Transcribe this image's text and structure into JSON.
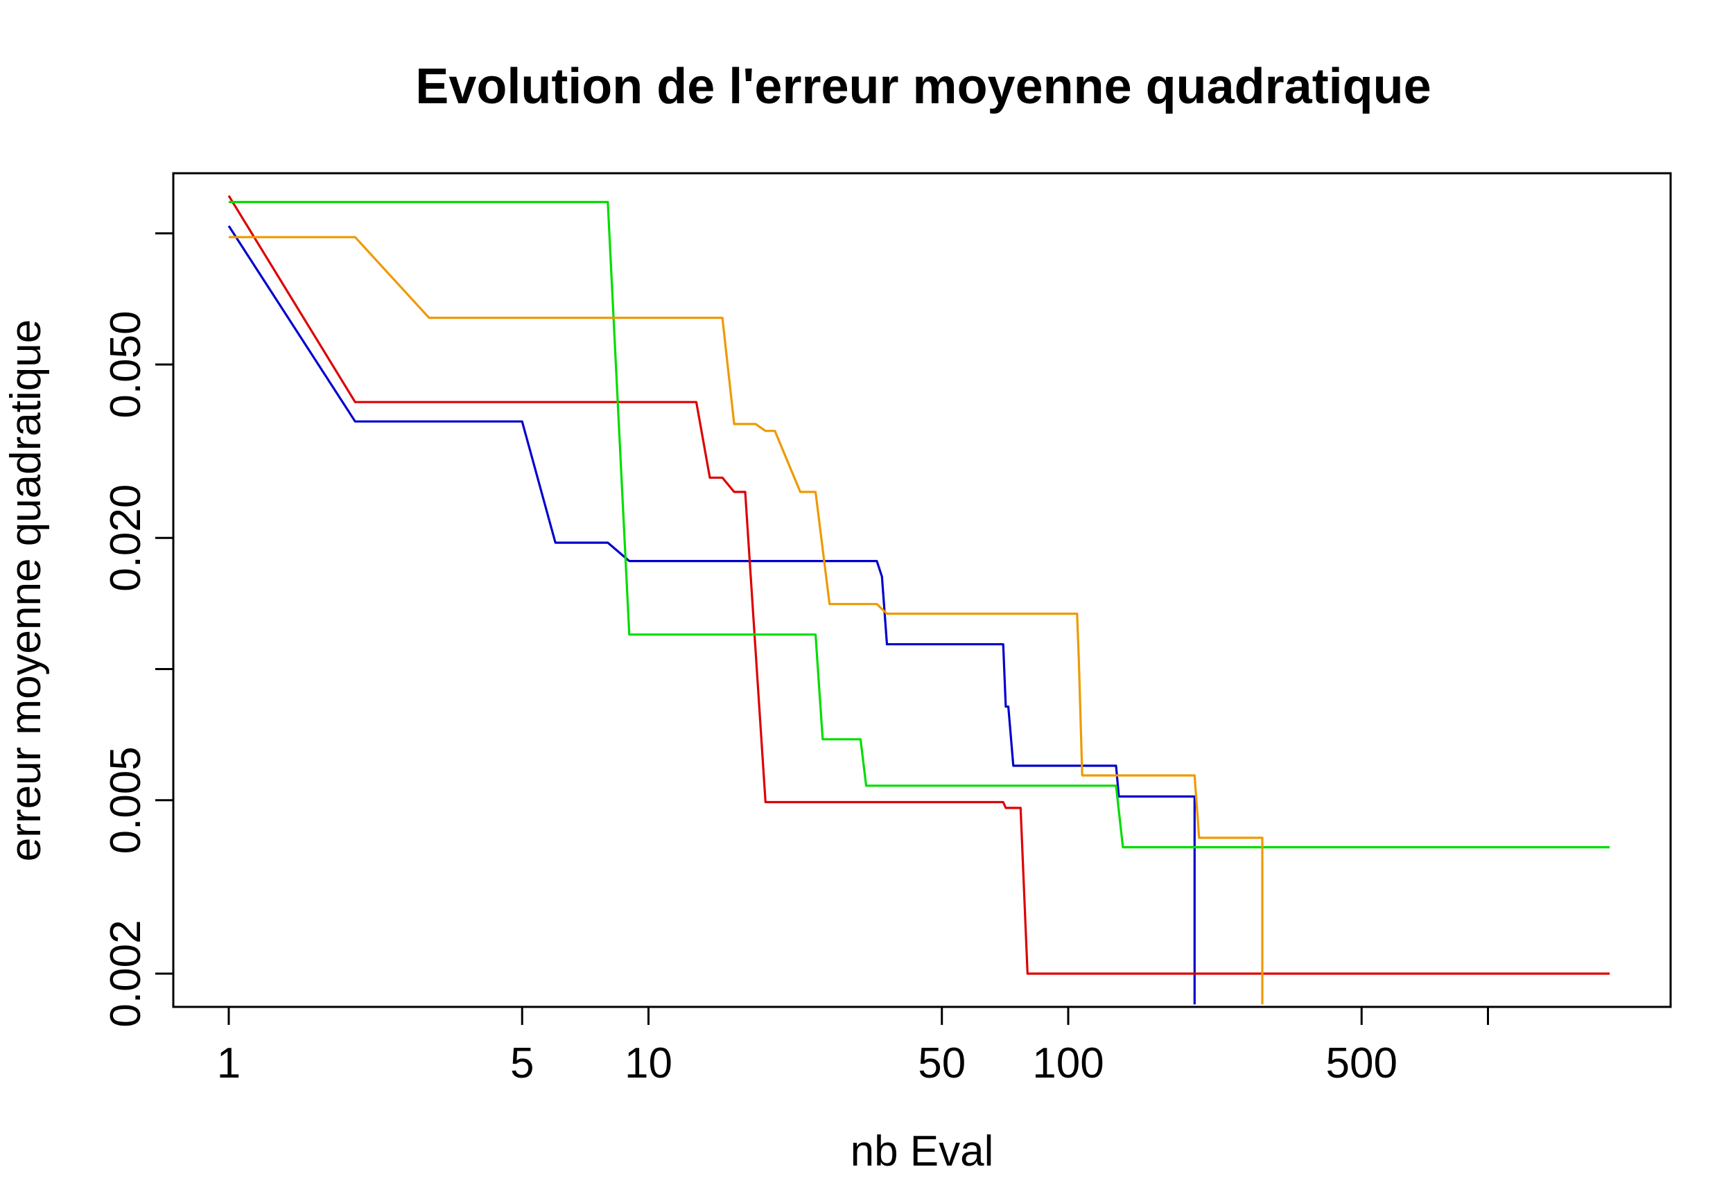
{
  "chart_data": {
    "type": "line",
    "title": "Evolution de l'erreur moyenne quadratique",
    "xlabel": "nb Eval",
    "ylabel": "erreur moyenne quadratique",
    "x_scale": "log",
    "y_scale": "log",
    "xlim": [
      1,
      2000
    ],
    "ylim": [
      0.0017,
      0.16
    ],
    "x_ticks": [
      {
        "value": 1,
        "label": "1"
      },
      {
        "value": 5,
        "label": "5"
      },
      {
        "value": 10,
        "label": "10"
      },
      {
        "value": 50,
        "label": "50"
      },
      {
        "value": 100,
        "label": "100"
      },
      {
        "value": 500,
        "label": "500"
      },
      {
        "value": 1000,
        "label": ""
      }
    ],
    "y_ticks": [
      {
        "value": 0.002,
        "label": "0.002"
      },
      {
        "value": 0.005,
        "label": "0.005"
      },
      {
        "value": 0.01,
        "label": ""
      },
      {
        "value": 0.02,
        "label": "0.020"
      },
      {
        "value": 0.05,
        "label": "0.050"
      },
      {
        "value": 0.1,
        "label": ""
      }
    ],
    "grid": false,
    "series": [
      {
        "color": "#0000cc",
        "points": [
          [
            1,
            0.104
          ],
          [
            2,
            0.037
          ],
          [
            5,
            0.037
          ],
          [
            6,
            0.0195
          ],
          [
            8,
            0.0195
          ],
          [
            9,
            0.0177
          ],
          [
            35,
            0.0177
          ],
          [
            36,
            0.0163
          ],
          [
            37,
            0.0114
          ],
          [
            70,
            0.0114
          ],
          [
            71,
            0.0082
          ],
          [
            72,
            0.0082
          ],
          [
            74,
            0.006
          ],
          [
            130,
            0.006
          ],
          [
            132,
            0.0051
          ],
          [
            200,
            0.0051
          ],
          [
            200,
            0.0017
          ]
        ]
      },
      {
        "color": "#dd0000",
        "points": [
          [
            1,
            0.122
          ],
          [
            2,
            0.041
          ],
          [
            13,
            0.041
          ],
          [
            14,
            0.0275
          ],
          [
            15,
            0.0275
          ],
          [
            16,
            0.0255
          ],
          [
            17,
            0.0255
          ],
          [
            19,
            0.00495
          ],
          [
            70,
            0.00495
          ],
          [
            71,
            0.0048
          ],
          [
            77,
            0.0048
          ],
          [
            80,
            0.002
          ],
          [
            1950,
            0.002
          ]
        ]
      },
      {
        "color": "#00dd00",
        "points": [
          [
            1,
            0.118
          ],
          [
            8,
            0.118
          ],
          [
            9,
            0.012
          ],
          [
            25,
            0.012
          ],
          [
            26,
            0.0069
          ],
          [
            32,
            0.0069
          ],
          [
            33,
            0.0054
          ],
          [
            130,
            0.0054
          ],
          [
            135,
            0.0039
          ],
          [
            1950,
            0.0039
          ]
        ]
      },
      {
        "color": "#ee9900",
        "points": [
          [
            1,
            0.098
          ],
          [
            2,
            0.098
          ],
          [
            3,
            0.064
          ],
          [
            15,
            0.064
          ],
          [
            16,
            0.0365
          ],
          [
            18,
            0.0365
          ],
          [
            19,
            0.0352
          ],
          [
            20,
            0.0352
          ],
          [
            23,
            0.0255
          ],
          [
            25,
            0.0255
          ],
          [
            27,
            0.0141
          ],
          [
            35,
            0.0141
          ],
          [
            37,
            0.0134
          ],
          [
            105,
            0.0134
          ],
          [
            106,
            0.0105
          ],
          [
            108,
            0.0057
          ],
          [
            200,
            0.0057
          ],
          [
            205,
            0.0041
          ],
          [
            290,
            0.0041
          ],
          [
            290,
            0.0017
          ]
        ]
      }
    ]
  }
}
